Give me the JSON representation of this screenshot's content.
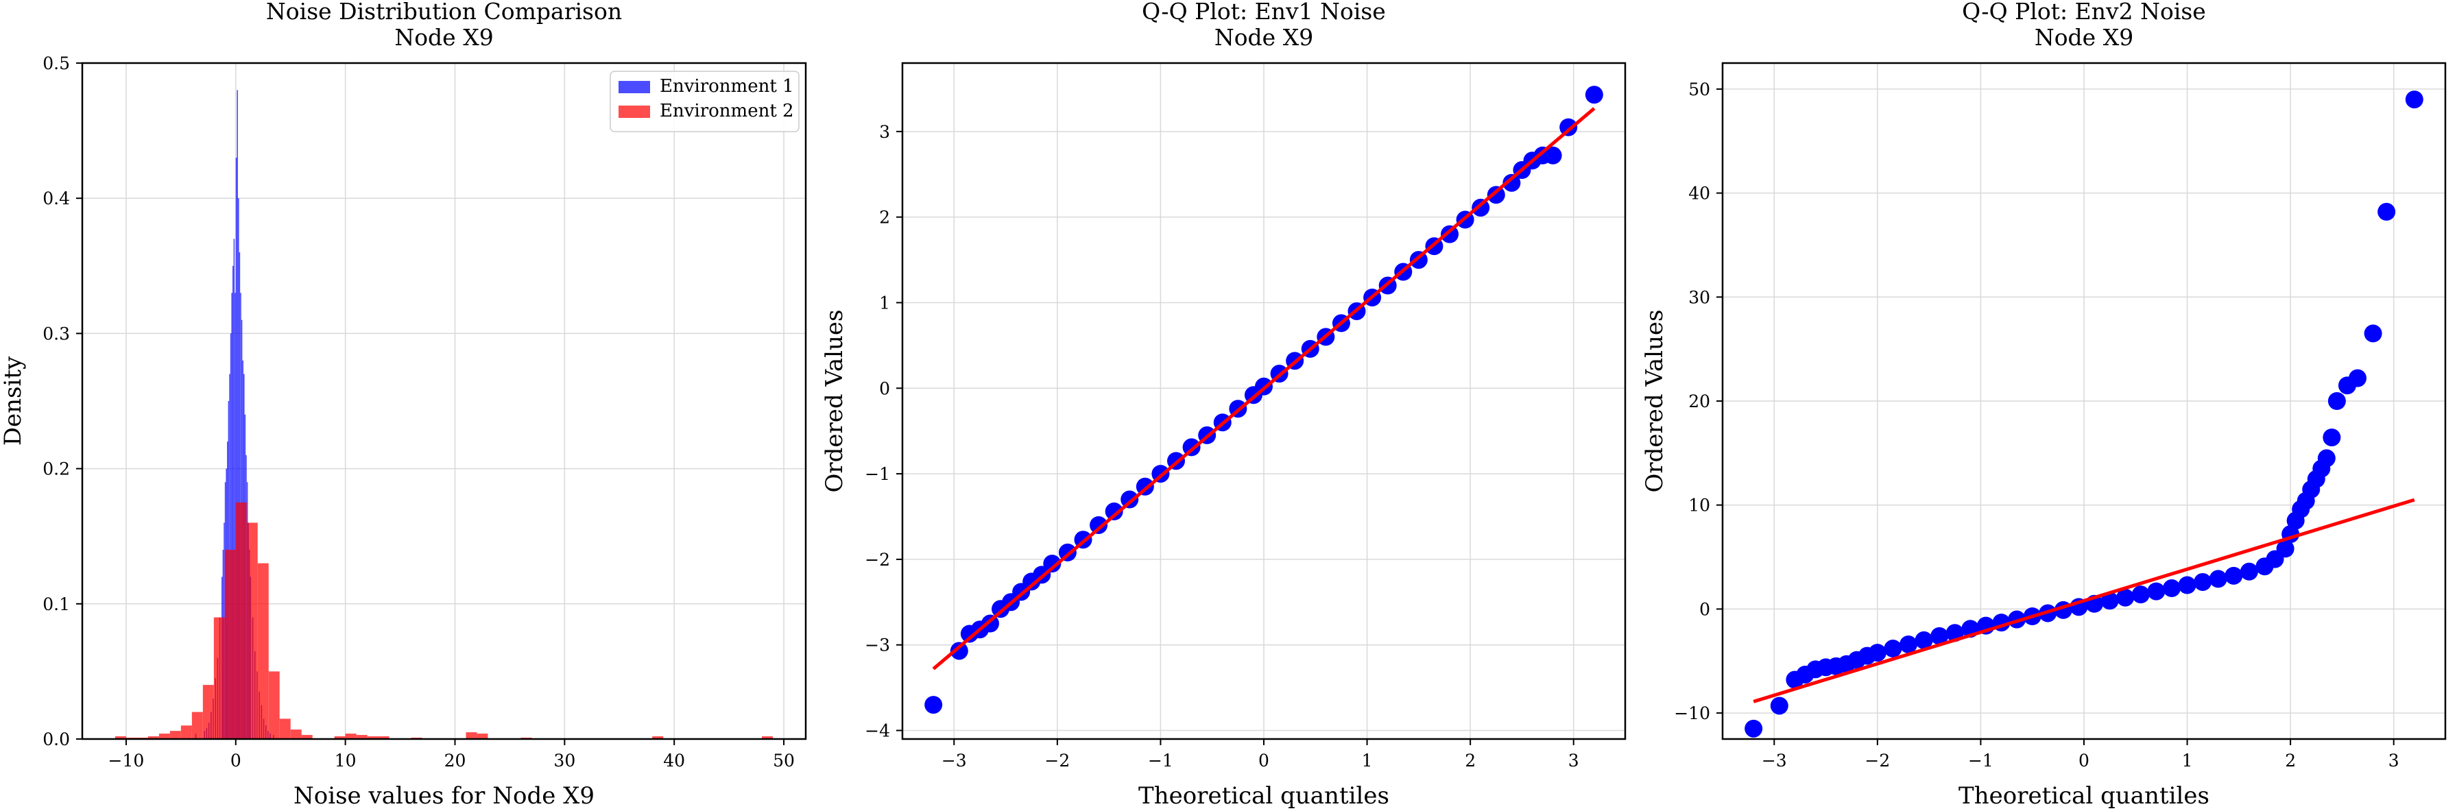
{
  "chart_data": [
    {
      "type": "histogram",
      "title": "Noise Distribution Comparison",
      "subtitle": "Node X9",
      "xlabel": "Noise values for Node X9",
      "ylabel": "Density",
      "xlim": [
        -14,
        52
      ],
      "ylim": [
        0,
        0.5
      ],
      "xticks": [
        -10,
        0,
        10,
        20,
        30,
        40,
        50
      ],
      "yticks": [
        0.0,
        0.1,
        0.2,
        0.3,
        0.4,
        0.5
      ],
      "grid": true,
      "legend_position": "top-right",
      "series": [
        {
          "name": "Environment 1",
          "color": "#0000ff",
          "bin_width": 0.1,
          "bins": [
            [
              -3.7,
              0.004
            ],
            [
              -2.9,
              0.006
            ],
            [
              -2.7,
              0.008
            ],
            [
              -2.5,
              0.012
            ],
            [
              -2.3,
              0.02
            ],
            [
              -2.1,
              0.03
            ],
            [
              -1.9,
              0.045
            ],
            [
              -1.7,
              0.06
            ],
            [
              -1.5,
              0.09
            ],
            [
              -1.3,
              0.12
            ],
            [
              -1.2,
              0.14
            ],
            [
              -1.1,
              0.16
            ],
            [
              -1.0,
              0.19
            ],
            [
              -0.9,
              0.2
            ],
            [
              -0.8,
              0.22
            ],
            [
              -0.7,
              0.25
            ],
            [
              -0.6,
              0.27
            ],
            [
              -0.5,
              0.3
            ],
            [
              -0.4,
              0.33
            ],
            [
              -0.3,
              0.35
            ],
            [
              -0.2,
              0.37
            ],
            [
              -0.1,
              0.33
            ],
            [
              0.0,
              0.43
            ],
            [
              0.1,
              0.48
            ],
            [
              0.2,
              0.4
            ],
            [
              0.3,
              0.36
            ],
            [
              0.4,
              0.33
            ],
            [
              0.5,
              0.31
            ],
            [
              0.6,
              0.28
            ],
            [
              0.7,
              0.27
            ],
            [
              0.8,
              0.24
            ],
            [
              0.9,
              0.21
            ],
            [
              1.0,
              0.19
            ],
            [
              1.1,
              0.16
            ],
            [
              1.2,
              0.14
            ],
            [
              1.3,
              0.12
            ],
            [
              1.5,
              0.09
            ],
            [
              1.7,
              0.065
            ],
            [
              1.9,
              0.05
            ],
            [
              2.1,
              0.035
            ],
            [
              2.3,
              0.025
            ],
            [
              2.5,
              0.015
            ],
            [
              2.7,
              0.01
            ],
            [
              2.9,
              0.006
            ],
            [
              3.1,
              0.004
            ],
            [
              3.4,
              0.003
            ]
          ]
        },
        {
          "name": "Environment 2",
          "color": "#ff0000",
          "bin_width": 1.0,
          "bins": [
            [
              -11.0,
              0.002
            ],
            [
              -10.0,
              0.001
            ],
            [
              -9.0,
              0.001
            ],
            [
              -8.0,
              0.002
            ],
            [
              -7.0,
              0.004
            ],
            [
              -6.0,
              0.006
            ],
            [
              -5.0,
              0.01
            ],
            [
              -4.0,
              0.02
            ],
            [
              -3.0,
              0.04
            ],
            [
              -2.0,
              0.09
            ],
            [
              -1.0,
              0.14
            ],
            [
              0.0,
              0.175
            ],
            [
              1.0,
              0.16
            ],
            [
              2.0,
              0.13
            ],
            [
              3.0,
              0.05
            ],
            [
              4.0,
              0.015
            ],
            [
              5.0,
              0.007
            ],
            [
              6.0,
              0.003
            ],
            [
              9.0,
              0.002
            ],
            [
              10.0,
              0.004
            ],
            [
              11.0,
              0.003
            ],
            [
              12.0,
              0.002
            ],
            [
              13.0,
              0.002
            ],
            [
              16.0,
              0.001
            ],
            [
              21.0,
              0.005
            ],
            [
              22.0,
              0.004
            ],
            [
              26.0,
              0.001
            ],
            [
              38.0,
              0.002
            ],
            [
              48.0,
              0.002
            ]
          ]
        }
      ]
    },
    {
      "type": "scatter",
      "title": "Q-Q Plot: Env1 Noise",
      "subtitle": "Node X9",
      "xlabel": "Theoretical quantiles",
      "ylabel": "Ordered Values",
      "xlim": [
        -3.5,
        3.5
      ],
      "ylim": [
        -4.1,
        3.8
      ],
      "xticks": [
        -3,
        -2,
        -1,
        0,
        1,
        2,
        3
      ],
      "yticks": [
        -4,
        -3,
        -2,
        -1,
        0,
        1,
        2,
        3
      ],
      "grid": true,
      "points_color": "#0000ff",
      "fit_line_color": "#ff0000",
      "fit_line": {
        "x": [
          -3.2,
          3.2
        ],
        "y": [
          -3.28,
          3.27
        ]
      },
      "points": {
        "x": [
          -3.2,
          -2.95,
          -2.85,
          -2.75,
          -2.65,
          -2.55,
          -2.45,
          -2.35,
          -2.25,
          -2.15,
          -2.05,
          -1.9,
          -1.75,
          -1.6,
          -1.45,
          -1.3,
          -1.15,
          -1.0,
          -0.85,
          -0.7,
          -0.55,
          -0.4,
          -0.25,
          -0.1,
          0.0,
          0.15,
          0.3,
          0.45,
          0.6,
          0.75,
          0.9,
          1.05,
          1.2,
          1.35,
          1.5,
          1.65,
          1.8,
          1.95,
          2.1,
          2.25,
          2.4,
          2.5,
          2.6,
          2.7,
          2.8,
          2.95,
          3.2
        ],
        "y": [
          -3.7,
          -3.07,
          -2.87,
          -2.82,
          -2.75,
          -2.58,
          -2.5,
          -2.38,
          -2.26,
          -2.18,
          -2.05,
          -1.92,
          -1.77,
          -1.6,
          -1.44,
          -1.3,
          -1.15,
          -1.0,
          -0.85,
          -0.69,
          -0.55,
          -0.4,
          -0.24,
          -0.08,
          0.02,
          0.17,
          0.32,
          0.46,
          0.6,
          0.76,
          0.9,
          1.06,
          1.2,
          1.36,
          1.5,
          1.66,
          1.8,
          1.97,
          2.11,
          2.26,
          2.4,
          2.55,
          2.66,
          2.72,
          2.72,
          3.05,
          3.43
        ]
      }
    },
    {
      "type": "scatter",
      "title": "Q-Q Plot: Env2 Noise",
      "subtitle": "Node X9",
      "xlabel": "Theoretical quantiles",
      "ylabel": "Ordered Values",
      "xlim": [
        -3.5,
        3.5
      ],
      "ylim": [
        -12.5,
        52.5
      ],
      "xticks": [
        -3,
        -2,
        -1,
        0,
        1,
        2,
        3
      ],
      "yticks": [
        -10,
        0,
        10,
        20,
        30,
        40,
        50
      ],
      "grid": true,
      "points_color": "#0000ff",
      "fit_line_color": "#ff0000",
      "fit_line": {
        "x": [
          -3.2,
          3.2
        ],
        "y": [
          -8.9,
          10.5
        ]
      },
      "points": {
        "x": [
          -3.2,
          -2.95,
          -2.8,
          -2.7,
          -2.6,
          -2.5,
          -2.4,
          -2.3,
          -2.2,
          -2.1,
          -2.0,
          -1.85,
          -1.7,
          -1.55,
          -1.4,
          -1.25,
          -1.1,
          -0.95,
          -0.8,
          -0.65,
          -0.5,
          -0.35,
          -0.2,
          -0.05,
          0.1,
          0.25,
          0.4,
          0.55,
          0.7,
          0.85,
          1.0,
          1.15,
          1.3,
          1.45,
          1.6,
          1.75,
          1.85,
          1.95,
          2.0,
          2.05,
          2.1,
          2.15,
          2.2,
          2.25,
          2.3,
          2.35,
          2.4,
          2.45,
          2.55,
          2.65,
          2.8,
          2.93,
          3.2
        ],
        "y": [
          -11.5,
          -9.3,
          -6.8,
          -6.3,
          -5.8,
          -5.6,
          -5.5,
          -5.3,
          -4.9,
          -4.5,
          -4.2,
          -3.8,
          -3.4,
          -3.0,
          -2.6,
          -2.3,
          -1.9,
          -1.6,
          -1.3,
          -1.0,
          -0.7,
          -0.4,
          -0.1,
          0.2,
          0.5,
          0.8,
          1.1,
          1.4,
          1.7,
          2.0,
          2.3,
          2.6,
          2.9,
          3.2,
          3.6,
          4.1,
          4.8,
          5.8,
          7.2,
          8.5,
          9.6,
          10.4,
          11.5,
          12.5,
          13.5,
          14.5,
          16.5,
          20.0,
          21.5,
          22.2,
          26.5,
          38.2,
          49.0
        ]
      }
    }
  ]
}
